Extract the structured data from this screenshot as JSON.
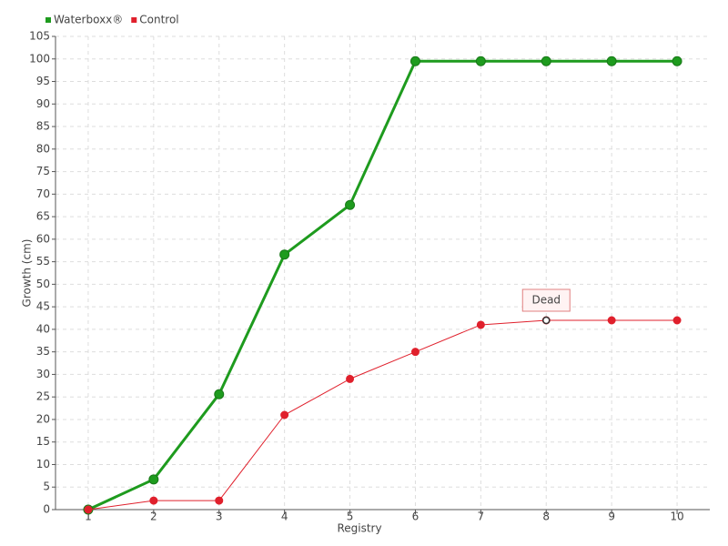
{
  "chart_data": {
    "type": "line",
    "x_label": "Registry",
    "y_label": "Growth (cm)",
    "categories": [
      "1",
      "2",
      "3",
      "4",
      "5",
      "6",
      "7",
      "8",
      "9",
      "10"
    ],
    "series": [
      {
        "name": "Waterboxx®",
        "color": "#1e9b1e",
        "values": [
          0,
          6.7,
          25.6,
          56.6,
          67.6,
          99.5,
          99.5,
          99.5,
          99.5,
          99.5
        ]
      },
      {
        "name": "Control",
        "color": "#e0202c",
        "values": [
          0,
          2,
          2,
          21,
          29,
          35,
          41,
          42,
          42,
          42
        ]
      }
    ],
    "ylim": [
      0,
      105
    ],
    "yticks": [
      0,
      5,
      10,
      15,
      20,
      25,
      30,
      35,
      40,
      45,
      50,
      55,
      60,
      65,
      70,
      75,
      80,
      85,
      90,
      95,
      100,
      105
    ],
    "grid": true,
    "legend": "top-left",
    "annotations": [
      {
        "label": "Dead",
        "x": "8",
        "y": 42
      }
    ]
  }
}
